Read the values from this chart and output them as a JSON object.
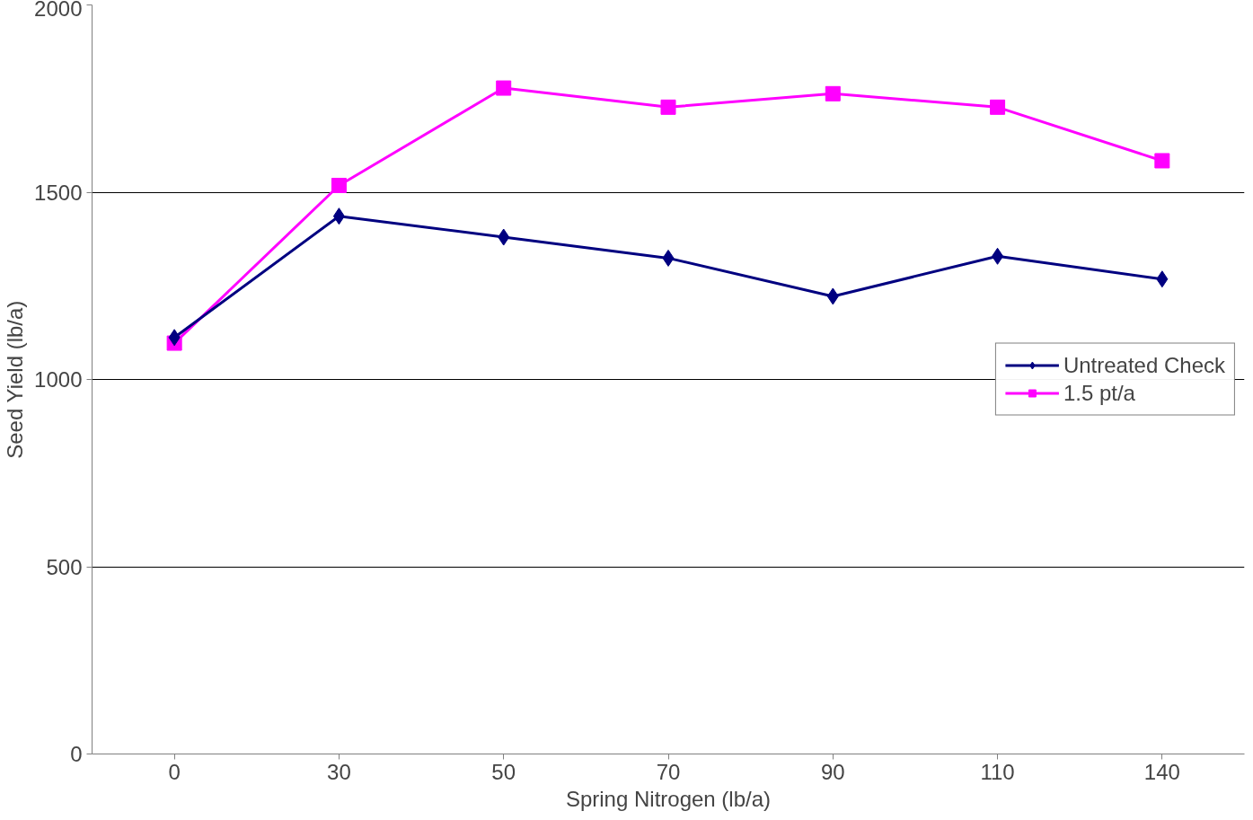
{
  "chart_data": {
    "type": "line",
    "xlabel": "Spring Nitrogen (lb/a)",
    "ylabel": "Seed Yield (lb/a)",
    "categories": [
      "0",
      "30",
      "50",
      "70",
      "90",
      "110",
      "140"
    ],
    "series": [
      {
        "name": "Untreated Check",
        "color": "#000080",
        "marker": "diamond",
        "values": [
          1112,
          1436,
          1380,
          1324,
          1222,
          1329,
          1268
        ]
      },
      {
        "name": "1.5 pt/a",
        "color": "#ff00ff",
        "marker": "square",
        "values": [
          1097,
          1518,
          1778,
          1727,
          1763,
          1727,
          1584
        ]
      }
    ],
    "ylim": [
      0,
      2000
    ],
    "yticks": [
      0,
      500,
      1000,
      1500,
      2000
    ],
    "grid": "y",
    "legend": "right",
    "line_style": "solid"
  }
}
